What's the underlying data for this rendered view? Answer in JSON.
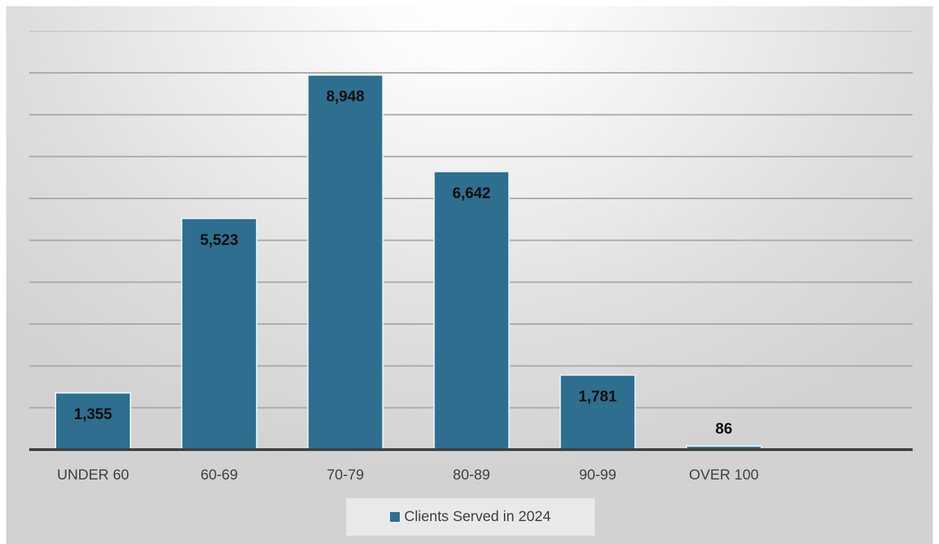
{
  "chart_data": {
    "type": "bar",
    "categories": [
      "UNDER 60",
      "60-69",
      "70-79",
      "80-89",
      "90-99",
      "OVER 100"
    ],
    "series": [
      {
        "name": "Clients Served in 2024",
        "values": [
          1355,
          5523,
          8948,
          6642,
          1781,
          86
        ],
        "labels": [
          "1,355",
          "5,523",
          "8,948",
          "6,642",
          "1,781",
          "86"
        ]
      }
    ],
    "ylim": [
      0,
      9000
    ],
    "y_tick_step": 1000,
    "grid": true,
    "legend_position": "bottom",
    "data_labels": "inside-end",
    "colors": {
      "bar": "#2e6e8e",
      "bar_border": "#e7f1f6"
    }
  }
}
